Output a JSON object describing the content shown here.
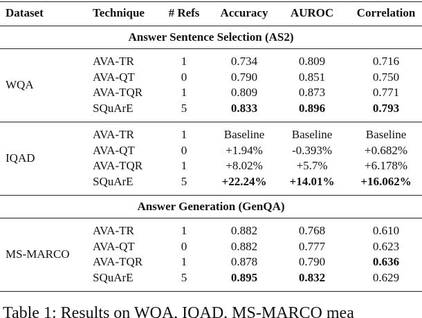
{
  "header": [
    "Dataset",
    "Technique",
    "# Refs",
    "Accuracy",
    "AUROC",
    "Correlation"
  ],
  "sections": [
    {
      "title": "Answer Sentence Selection (AS2)",
      "groups": [
        {
          "dataset": "WQA",
          "rows": [
            {
              "cells": [
                "AVA-TR",
                "1",
                "0.734",
                "0.809",
                "0.716"
              ],
              "bold": [
                false,
                false,
                false,
                false,
                false
              ]
            },
            {
              "cells": [
                "AVA-QT",
                "0",
                "0.790",
                "0.851",
                "0.750"
              ],
              "bold": [
                false,
                false,
                false,
                false,
                false
              ]
            },
            {
              "cells": [
                "AVA-TQR",
                "1",
                "0.809",
                "0.873",
                "0.771"
              ],
              "bold": [
                false,
                false,
                false,
                false,
                false
              ]
            },
            {
              "cells": [
                "SQuArE",
                "5",
                "0.833",
                "0.896",
                "0.793"
              ],
              "bold": [
                false,
                false,
                true,
                true,
                true
              ]
            }
          ]
        },
        {
          "dataset": "IQAD",
          "rows": [
            {
              "cells": [
                "AVA-TR",
                "1",
                "Baseline",
                "Baseline",
                "Baseline"
              ],
              "bold": [
                false,
                false,
                false,
                false,
                false
              ]
            },
            {
              "cells": [
                "AVA-QT",
                "0",
                "+1.94%",
                "-0.393%",
                "+0.682%"
              ],
              "bold": [
                false,
                false,
                false,
                false,
                false
              ]
            },
            {
              "cells": [
                "AVA-TQR",
                "1",
                "+8.02%",
                "+5.7%",
                "+6.178%"
              ],
              "bold": [
                false,
                false,
                false,
                false,
                false
              ]
            },
            {
              "cells": [
                "SQuArE",
                "5",
                "+22.24%",
                "+14.01%",
                "+16.062%"
              ],
              "bold": [
                false,
                false,
                true,
                true,
                true
              ]
            }
          ]
        }
      ]
    },
    {
      "title": "Answer Generation (GenQA)",
      "groups": [
        {
          "dataset": "MS-MARCO",
          "rows": [
            {
              "cells": [
                "AVA-TR",
                "1",
                "0.882",
                "0.768",
                "0.610"
              ],
              "bold": [
                false,
                false,
                false,
                false,
                false
              ]
            },
            {
              "cells": [
                "AVA-QT",
                "0",
                "0.882",
                "0.777",
                "0.623"
              ],
              "bold": [
                false,
                false,
                false,
                false,
                false
              ]
            },
            {
              "cells": [
                "AVA-TQR",
                "1",
                "0.878",
                "0.790",
                "0.636"
              ],
              "bold": [
                false,
                false,
                false,
                false,
                true
              ]
            },
            {
              "cells": [
                "SQuArE",
                "5",
                "0.895",
                "0.832",
                "0.629"
              ],
              "bold": [
                false,
                false,
                true,
                true,
                false
              ]
            }
          ]
        }
      ]
    }
  ],
  "caption": "Table 1: Results on WQA, IQAD, MS-MARCO mea"
}
